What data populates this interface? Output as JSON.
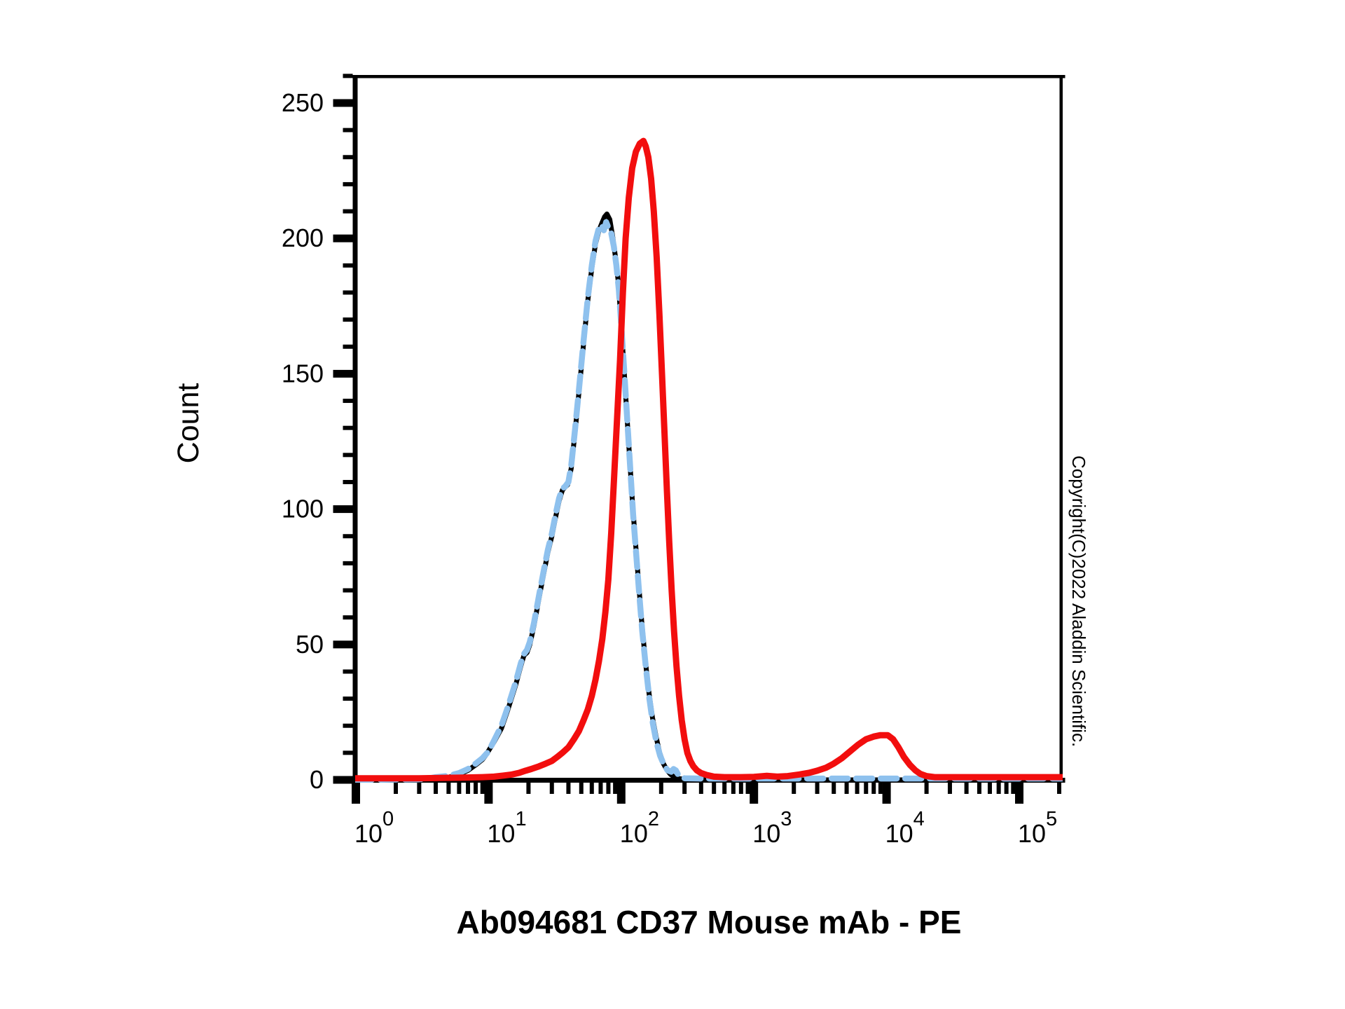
{
  "watermark": "Copyright(C)2022 Aladdin Scientific.",
  "chart_data": {
    "type": "line",
    "title": "Ab094681 CD37 Mouse mAb - PE",
    "xlabel": "Ab094681 CD37 Mouse mAb - PE",
    "ylabel": "Count",
    "x_scale": "log10",
    "xlim": [
      1,
      215000
    ],
    "ylim": [
      0,
      260
    ],
    "x_tick_exponents": [
      0,
      1,
      2,
      3,
      4,
      5
    ],
    "x_tick_label_base": "10",
    "y_ticks": [
      0,
      50,
      100,
      150,
      200,
      250
    ],
    "y_minor_step": 10,
    "grid": false,
    "legend": false,
    "background_color": "#ffffff",
    "axis_color": "#000000",
    "series": [
      {
        "name": "black-solid",
        "color": "#000000",
        "style": "solid",
        "stroke_width": 7,
        "points": [
          [
            1,
            0
          ],
          [
            2,
            0
          ],
          [
            3,
            0
          ],
          [
            3.5,
            0.2
          ],
          [
            4,
            0.5
          ],
          [
            5,
            1
          ],
          [
            6,
            2
          ],
          [
            7,
            3.5
          ],
          [
            8,
            5.5
          ],
          [
            9,
            7.5
          ],
          [
            9.5,
            9
          ],
          [
            11,
            14
          ],
          [
            12.5,
            19
          ],
          [
            14,
            26
          ],
          [
            16,
            35
          ],
          [
            17.5,
            42
          ],
          [
            18.5,
            46
          ],
          [
            19.5,
            47
          ],
          [
            20.5,
            50
          ],
          [
            22,
            57
          ],
          [
            24,
            67
          ],
          [
            26,
            76
          ],
          [
            28,
            84
          ],
          [
            30,
            90
          ],
          [
            32,
            97
          ],
          [
            34,
            103
          ],
          [
            36,
            107
          ],
          [
            37.5,
            108
          ],
          [
            39.5,
            109
          ],
          [
            42,
            115
          ],
          [
            45,
            129
          ],
          [
            48,
            143
          ],
          [
            52,
            161
          ],
          [
            56,
            177
          ],
          [
            60,
            189
          ],
          [
            64,
            198
          ],
          [
            68,
            203
          ],
          [
            72,
            206
          ],
          [
            75,
            208
          ],
          [
            78,
            209
          ],
          [
            82,
            207
          ],
          [
            86,
            201
          ],
          [
            90,
            194
          ],
          [
            95,
            184
          ],
          [
            100,
            168
          ],
          [
            105,
            152
          ],
          [
            110,
            136
          ],
          [
            116,
            118
          ],
          [
            122,
            101
          ],
          [
            128,
            88
          ],
          [
            135,
            73
          ],
          [
            143,
            58
          ],
          [
            152,
            44
          ],
          [
            162,
            32
          ],
          [
            172,
            23
          ],
          [
            183,
            16
          ],
          [
            195,
            10
          ],
          [
            208,
            6
          ],
          [
            222,
            3.5
          ],
          [
            236,
            2
          ],
          [
            252,
            1
          ],
          [
            270,
            0.5
          ],
          [
            300,
            0.2
          ],
          [
            350,
            0
          ],
          [
            1000,
            0
          ],
          [
            10000,
            0
          ],
          [
            215000,
            0
          ]
        ]
      },
      {
        "name": "blue-dashed",
        "color": "#8EC1EE",
        "style": "dashed",
        "stroke_width": 8.5,
        "dash": "23 12",
        "points": [
          [
            1,
            0
          ],
          [
            3,
            0.2
          ],
          [
            3.5,
            0.5
          ],
          [
            4,
            1
          ],
          [
            5,
            1.5
          ],
          [
            6,
            2.5
          ],
          [
            7,
            4
          ],
          [
            8,
            6
          ],
          [
            9,
            8
          ],
          [
            10,
            10.5
          ],
          [
            11,
            14.5
          ],
          [
            12.5,
            20
          ],
          [
            14,
            27
          ],
          [
            16,
            36
          ],
          [
            17.5,
            43
          ],
          [
            18.5,
            46.5
          ],
          [
            19.5,
            48
          ],
          [
            20.5,
            51
          ],
          [
            22,
            58
          ],
          [
            24,
            68
          ],
          [
            26,
            77
          ],
          [
            28,
            85
          ],
          [
            30,
            91
          ],
          [
            32,
            98
          ],
          [
            34,
            104
          ],
          [
            36,
            107.5
          ],
          [
            38,
            108.5
          ],
          [
            40,
            110
          ],
          [
            42,
            116
          ],
          [
            45,
            130
          ],
          [
            48,
            144
          ],
          [
            52,
            162
          ],
          [
            56,
            178
          ],
          [
            60,
            190
          ],
          [
            64,
            199
          ],
          [
            68,
            204
          ],
          [
            71,
            205
          ],
          [
            74,
            203
          ],
          [
            77,
            206
          ],
          [
            80,
            204
          ],
          [
            84,
            202
          ],
          [
            88,
            197
          ],
          [
            92,
            190
          ],
          [
            96,
            181
          ],
          [
            101,
            165
          ],
          [
            106,
            149
          ],
          [
            111,
            133
          ],
          [
            117,
            115
          ],
          [
            123,
            98
          ],
          [
            129,
            85
          ],
          [
            136,
            70
          ],
          [
            144,
            55
          ],
          [
            153,
            42
          ],
          [
            163,
            30
          ],
          [
            173,
            21
          ],
          [
            184,
            14
          ],
          [
            196,
            9
          ],
          [
            210,
            5.5
          ],
          [
            224,
            3.5
          ],
          [
            238,
            3
          ],
          [
            248,
            4
          ],
          [
            258,
            3.5
          ],
          [
            268,
            2
          ],
          [
            280,
            1
          ],
          [
            300,
            0.6
          ],
          [
            400,
            0.5
          ],
          [
            1000,
            0.5
          ],
          [
            3000,
            0.5
          ],
          [
            10000,
            0.5
          ],
          [
            30000,
            0.5
          ],
          [
            100000,
            0.5
          ],
          [
            215000,
            0.5
          ]
        ]
      },
      {
        "name": "red-solid",
        "color": "#F20E0E",
        "style": "solid",
        "stroke_width": 9,
        "points": [
          [
            1,
            0.6
          ],
          [
            3,
            0.6
          ],
          [
            6,
            0.8
          ],
          [
            9,
            1
          ],
          [
            11,
            1.2
          ],
          [
            13,
            1.6
          ],
          [
            15,
            2
          ],
          [
            17,
            2.6
          ],
          [
            19,
            3.4
          ],
          [
            21,
            4
          ],
          [
            24,
            5
          ],
          [
            27,
            6
          ],
          [
            30,
            7
          ],
          [
            33,
            8.5
          ],
          [
            36,
            10
          ],
          [
            40,
            12
          ],
          [
            44,
            15
          ],
          [
            48,
            18
          ],
          [
            52,
            22
          ],
          [
            56,
            26
          ],
          [
            60,
            31
          ],
          [
            64,
            37
          ],
          [
            68,
            44
          ],
          [
            72,
            52
          ],
          [
            76,
            62
          ],
          [
            80,
            74
          ],
          [
            84,
            91
          ],
          [
            88,
            110
          ],
          [
            93,
            133
          ],
          [
            98,
            155
          ],
          [
            103,
            180
          ],
          [
            108,
            200
          ],
          [
            114,
            215
          ],
          [
            121,
            226
          ],
          [
            129,
            232
          ],
          [
            138,
            235
          ],
          [
            147,
            236
          ],
          [
            153,
            234
          ],
          [
            160,
            230
          ],
          [
            168,
            222
          ],
          [
            176,
            210
          ],
          [
            185,
            193
          ],
          [
            194,
            172
          ],
          [
            203,
            150
          ],
          [
            212,
            128
          ],
          [
            221,
            107
          ],
          [
            230,
            88
          ],
          [
            240,
            70
          ],
          [
            250,
            55
          ],
          [
            261,
            42
          ],
          [
            273,
            31
          ],
          [
            286,
            22
          ],
          [
            300,
            15
          ],
          [
            315,
            10
          ],
          [
            332,
            7
          ],
          [
            350,
            5
          ],
          [
            372,
            3.5
          ],
          [
            400,
            2.5
          ],
          [
            440,
            1.8
          ],
          [
            500,
            1.2
          ],
          [
            600,
            1
          ],
          [
            800,
            1
          ],
          [
            1000,
            1.1
          ],
          [
            1250,
            1.5
          ],
          [
            1500,
            1.2
          ],
          [
            1800,
            1.4
          ],
          [
            2200,
            2
          ],
          [
            2600,
            2.6
          ],
          [
            3000,
            3.4
          ],
          [
            3500,
            4.5
          ],
          [
            4000,
            6
          ],
          [
            4600,
            8
          ],
          [
            5300,
            10.5
          ],
          [
            6100,
            13
          ],
          [
            7000,
            15
          ],
          [
            8000,
            16
          ],
          [
            9000,
            16.5
          ],
          [
            10200,
            16.5
          ],
          [
            11200,
            15
          ],
          [
            12300,
            12
          ],
          [
            13500,
            8.5
          ],
          [
            15000,
            5.5
          ],
          [
            16500,
            3.5
          ],
          [
            18000,
            2.2
          ],
          [
            20000,
            1.4
          ],
          [
            23000,
            1
          ],
          [
            28000,
            1
          ],
          [
            40000,
            1
          ],
          [
            60000,
            1
          ],
          [
            90000,
            1
          ],
          [
            150000,
            1
          ],
          [
            215000,
            1
          ]
        ]
      }
    ]
  }
}
